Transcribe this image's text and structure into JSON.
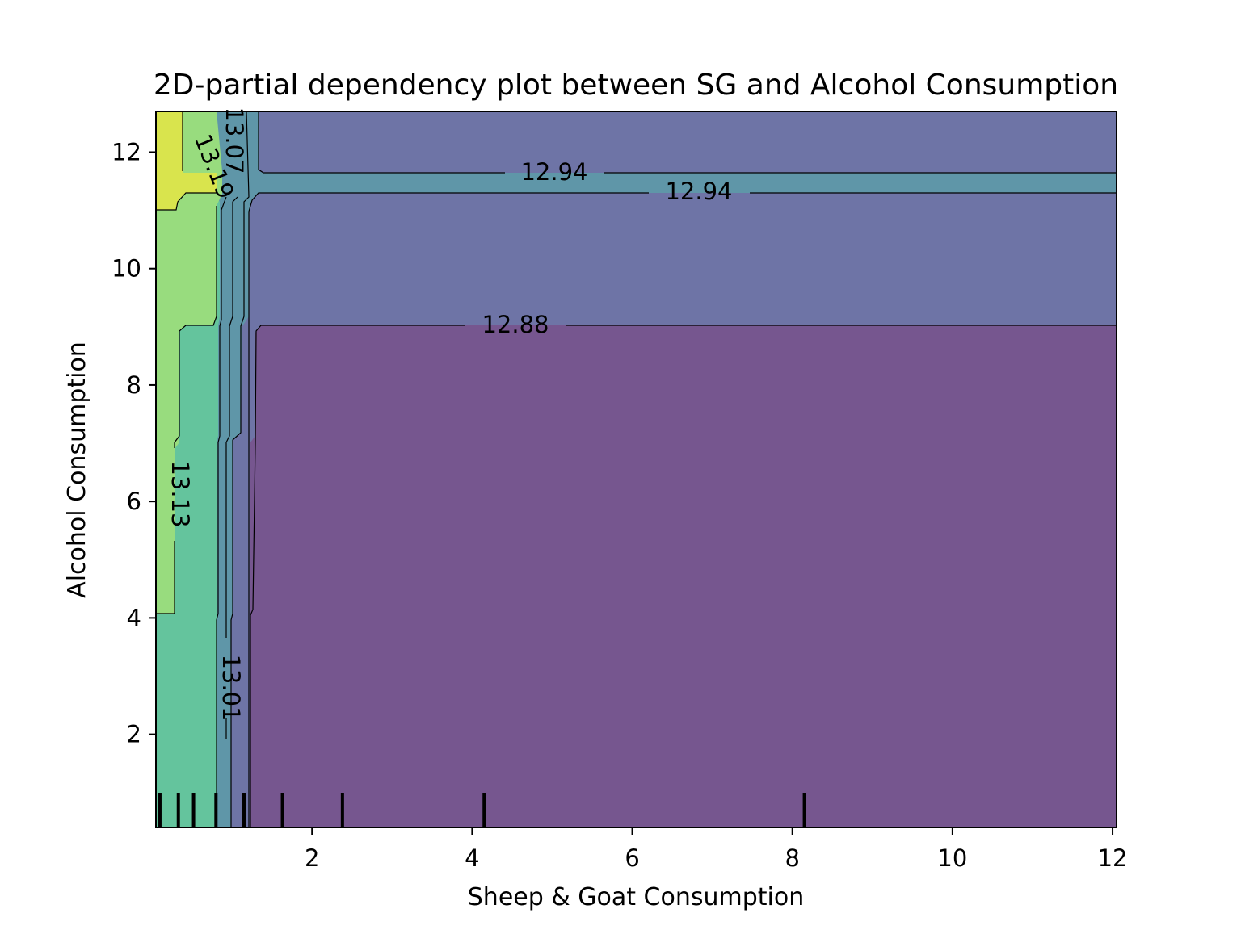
{
  "chart_data": {
    "type": "contour",
    "title": "2D-partial dependency plot between SG and Alcohol Consumption",
    "xlabel": "Sheep & Goat Consumption",
    "ylabel": "Alcohol Consumption",
    "xlim": [
      0.05,
      12.05
    ],
    "ylim": [
      0.4,
      12.7
    ],
    "x_ticks": [
      2,
      4,
      6,
      8,
      10,
      12
    ],
    "y_ticks": [
      2,
      4,
      6,
      8,
      10,
      12
    ],
    "contour_levels": [
      "12.88",
      "12.94",
      "13.01",
      "13.07",
      "13.13",
      "13.19"
    ],
    "regions": [
      {
        "level": "below 12.88",
        "color": "#76568f",
        "x": [
          1.2,
          12.05
        ],
        "y": [
          0.4,
          9.0
        ]
      },
      {
        "level": "12.88-12.94",
        "color": "#6e74a6",
        "x": [
          1.0,
          12.05
        ],
        "y": [
          0.4,
          12.7
        ]
      },
      {
        "level": "12.94-13.01",
        "color": "#5f96a8",
        "x": [
          0.95,
          12.05
        ],
        "y": [
          11.3,
          11.65
        ]
      },
      {
        "level": "13.01-13.07",
        "color": "#5f96a8",
        "x": [
          0.8,
          1.2
        ],
        "y": [
          0.4,
          12.7
        ]
      },
      {
        "level": "13.07-13.13",
        "color": "#64c49d",
        "x": [
          0.05,
          0.8
        ],
        "y": [
          0.4,
          11.0
        ]
      },
      {
        "level": "13.13-13.19",
        "color": "#98dc7e",
        "x": [
          0.05,
          0.85
        ],
        "y": [
          4.1,
          12.7
        ]
      },
      {
        "level": "above 13.19",
        "color": "#d9e44d",
        "x": [
          0.05,
          0.4
        ],
        "y": [
          11.0,
          12.7
        ]
      }
    ],
    "rug_x": [
      0.1,
      0.33,
      0.52,
      0.8,
      1.15,
      1.63,
      2.38,
      4.15,
      8.15
    ]
  }
}
